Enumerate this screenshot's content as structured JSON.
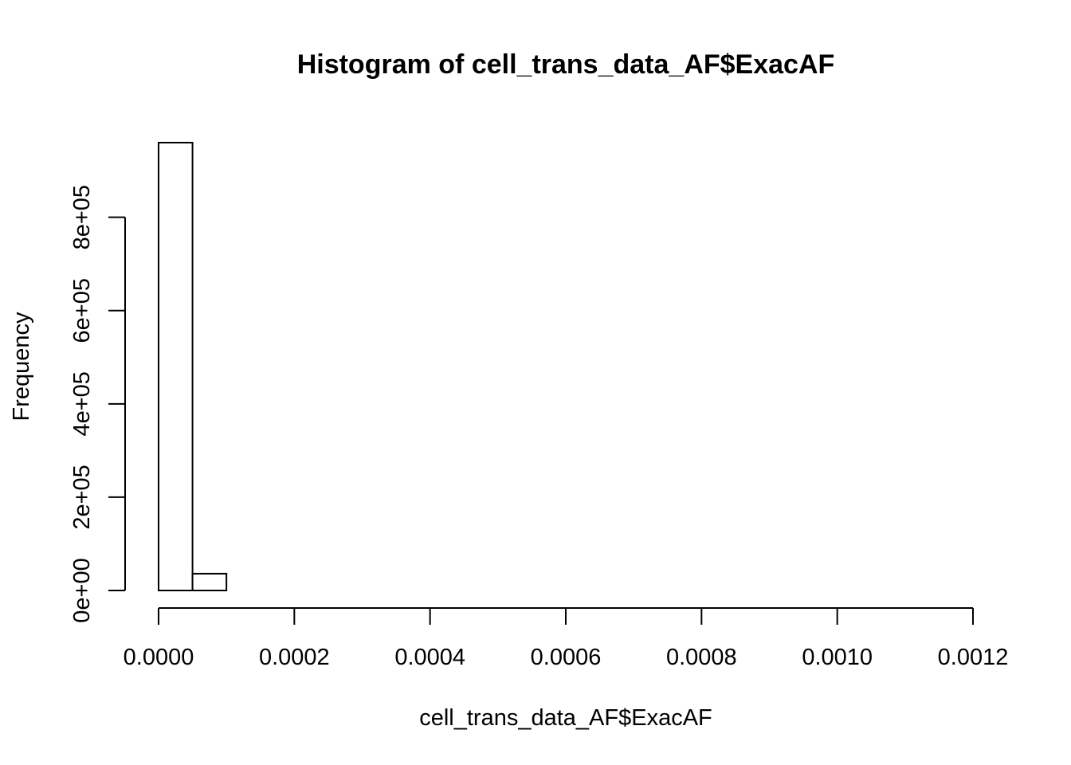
{
  "chart_data": {
    "type": "bar",
    "title": "Histogram of cell_trans_data_AF$ExacAF",
    "xlabel": "cell_trans_data_AF$ExacAF",
    "ylabel": "Frequency",
    "bin_width": 5e-05,
    "bins": [
      {
        "x0": 0.0,
        "x1": 5e-05,
        "count": 960000
      },
      {
        "x0": 5e-05,
        "x1": 0.0001,
        "count": 36000
      },
      {
        "x0": 0.0001,
        "x1": 0.00015,
        "count": 0
      },
      {
        "x0": 0.00015,
        "x1": 0.0002,
        "count": 0
      },
      {
        "x0": 0.0002,
        "x1": 0.00025,
        "count": 0
      },
      {
        "x0": 0.00025,
        "x1": 0.0003,
        "count": 0
      },
      {
        "x0": 0.0003,
        "x1": 0.00035,
        "count": 0
      },
      {
        "x0": 0.00035,
        "x1": 0.0004,
        "count": 0
      },
      {
        "x0": 0.0004,
        "x1": 0.00045,
        "count": 0
      },
      {
        "x0": 0.00045,
        "x1": 0.0005,
        "count": 0
      },
      {
        "x0": 0.0005,
        "x1": 0.00055,
        "count": 0
      },
      {
        "x0": 0.00055,
        "x1": 0.0006,
        "count": 0
      },
      {
        "x0": 0.0006,
        "x1": 0.00065,
        "count": 0
      },
      {
        "x0": 0.00065,
        "x1": 0.0007,
        "count": 0
      },
      {
        "x0": 0.0007,
        "x1": 0.00075,
        "count": 0
      },
      {
        "x0": 0.00075,
        "x1": 0.0008,
        "count": 0
      },
      {
        "x0": 0.0008,
        "x1": 0.00085,
        "count": 0
      },
      {
        "x0": 0.00085,
        "x1": 0.0009,
        "count": 0
      },
      {
        "x0": 0.0009,
        "x1": 0.00095,
        "count": 0
      },
      {
        "x0": 0.00095,
        "x1": 0.001,
        "count": 0
      },
      {
        "x0": 0.001,
        "x1": 0.00105,
        "count": 0
      },
      {
        "x0": 0.00105,
        "x1": 0.0011,
        "count": 0
      },
      {
        "x0": 0.0011,
        "x1": 0.00115,
        "count": 0
      },
      {
        "x0": 0.00115,
        "x1": 0.0012,
        "count": 0
      }
    ],
    "x_ticks": [
      0.0,
      0.0002,
      0.0004,
      0.0006,
      0.0008,
      0.001,
      0.0012
    ],
    "x_tick_labels": [
      "0.0000",
      "0.0002",
      "0.0004",
      "0.0006",
      "0.0008",
      "0.0010",
      "0.0012"
    ],
    "y_ticks": [
      0,
      200000,
      400000,
      600000,
      800000
    ],
    "y_tick_labels": [
      "0e+00",
      "2e+05",
      "4e+05",
      "6e+05",
      "8e+05"
    ],
    "xlim": [
      0.0,
      0.0012
    ],
    "ylim": [
      0,
      960000
    ],
    "grid": false,
    "legend": "none"
  }
}
